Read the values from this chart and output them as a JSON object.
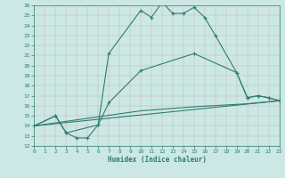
{
  "title": "",
  "xlabel": "Humidex (Indice chaleur)",
  "xlim": [
    0,
    23
  ],
  "ylim": [
    12,
    26
  ],
  "xticks": [
    0,
    1,
    2,
    3,
    4,
    5,
    6,
    7,
    8,
    9,
    10,
    11,
    12,
    13,
    14,
    15,
    16,
    17,
    18,
    19,
    20,
    21,
    22,
    23
  ],
  "yticks": [
    12,
    13,
    14,
    15,
    16,
    17,
    18,
    19,
    20,
    21,
    22,
    23,
    24,
    25,
    26
  ],
  "bg_color": "#cce8e4",
  "line_color": "#2e7d72",
  "line1_x": [
    0,
    2,
    3,
    4,
    5,
    6,
    7,
    10,
    11,
    12,
    13,
    14,
    15,
    16,
    17,
    19,
    20,
    21,
    22,
    23
  ],
  "line1_y": [
    14,
    15,
    13.3,
    12.8,
    12.8,
    14.1,
    21.2,
    25.5,
    24.8,
    26.3,
    25.2,
    25.2,
    25.8,
    24.8,
    23.0,
    19.3,
    16.8,
    17.0,
    16.8,
    16.5
  ],
  "line2_x": [
    0,
    2,
    3,
    6,
    7,
    10,
    15,
    19,
    20,
    21,
    22,
    23
  ],
  "line2_y": [
    14,
    15,
    13.3,
    14.1,
    16.3,
    19.5,
    21.2,
    19.3,
    16.8,
    17.0,
    16.8,
    16.5
  ],
  "line3_x": [
    0,
    23
  ],
  "line3_y": [
    14,
    16.5
  ],
  "line4_x": [
    0,
    10,
    15,
    20,
    23
  ],
  "line4_y": [
    14,
    15.5,
    15.9,
    16.2,
    16.5
  ]
}
